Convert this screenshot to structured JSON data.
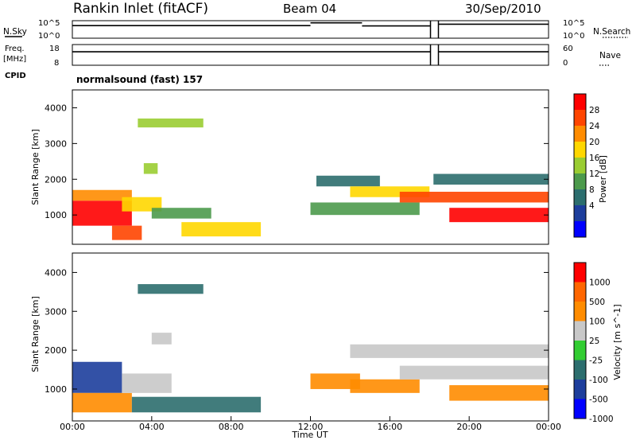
{
  "header": {
    "station": "Rankin Inlet (fitACF)",
    "beam": "Beam 04",
    "date": "30/Sep/2010"
  },
  "side_labels": {
    "nsky": "N.Sky",
    "freq_line1": "Freq.",
    "freq_line2": "[MHz]",
    "cpid": "CPID",
    "nsearch": "N.Search",
    "nave": "Nave"
  },
  "cpid_text": "normalsound (fast) 157",
  "time_axis": {
    "title": "Time UT",
    "ticks": [
      "00:00",
      "04:00",
      "08:00",
      "12:00",
      "16:00",
      "20:00",
      "00:00"
    ]
  },
  "chart_data": [
    {
      "type": "line",
      "id": "nsky-nsearch",
      "left_ticks": [
        "10^5",
        "10^0"
      ],
      "right_ticks": [
        "10^5",
        "10^0"
      ],
      "description_hours": [
        0,
        0.05,
        12,
        12.02,
        14.5,
        18.05,
        18.1,
        18.45,
        18.5,
        24
      ],
      "segments": [
        {
          "from_h": 0,
          "to_h": 12,
          "level": 0.28
        },
        {
          "from_h": 12,
          "to_h": 14.6,
          "level": 0.12
        },
        {
          "from_h": 14.6,
          "to_h": 18.05,
          "level": 0.3
        },
        {
          "from_h": 18.45,
          "to_h": 24,
          "level": 0.2
        }
      ]
    },
    {
      "type": "line",
      "id": "freq-nave",
      "left_ticks": [
        "18",
        "8"
      ],
      "right_ticks": [
        "60",
        "0"
      ],
      "segments": [
        {
          "from_h": 0,
          "to_h": 18.05,
          "level": 0.35
        },
        {
          "from_h": 18.45,
          "to_h": 24,
          "level": 0.35
        }
      ]
    },
    {
      "type": "heatmap",
      "id": "power",
      "ylabel": "Slant Range [km]",
      "yticks": [
        "4000",
        "3000",
        "2000",
        "1000"
      ],
      "ylim": [
        180,
        4500
      ],
      "xlim_hours": [
        0,
        24
      ],
      "colorbar_label": "Power [dB]",
      "colorbar_ticks": [
        "28",
        "24",
        "20",
        "16",
        "12",
        "8",
        "4"
      ],
      "colors": [
        "#0000ff",
        "#1d3e9c",
        "#2c6e6e",
        "#4c9a4c",
        "#9acd32",
        "#ffd700",
        "#ff8c00",
        "#ff4500",
        "#ff0000"
      ],
      "bands": [
        {
          "h0": 0,
          "h1": 3.0,
          "r0": 700,
          "r1": 1400,
          "c": 8
        },
        {
          "h0": 0,
          "h1": 3.0,
          "r0": 1400,
          "r1": 1700,
          "c": 6
        },
        {
          "h0": 2.5,
          "h1": 4.5,
          "r0": 1100,
          "r1": 1500,
          "c": 5
        },
        {
          "h0": 4.0,
          "h1": 7.0,
          "r0": 900,
          "r1": 1200,
          "c": 3
        },
        {
          "h0": 5.5,
          "h1": 9.5,
          "r0": 400,
          "r1": 800,
          "c": 5
        },
        {
          "h0": 2.0,
          "h1": 3.5,
          "r0": 300,
          "r1": 700,
          "c": 7
        },
        {
          "h0": 3.3,
          "h1": 6.6,
          "r0": 3450,
          "r1": 3700,
          "c": 4
        },
        {
          "h0": 3.6,
          "h1": 4.3,
          "r0": 2150,
          "r1": 2450,
          "c": 4
        },
        {
          "h0": 12.0,
          "h1": 17.5,
          "r0": 1000,
          "r1": 1350,
          "c": 3
        },
        {
          "h0": 12.3,
          "h1": 15.5,
          "r0": 1800,
          "r1": 2100,
          "c": 2
        },
        {
          "h0": 14.0,
          "h1": 18.0,
          "r0": 1500,
          "r1": 1800,
          "c": 5
        },
        {
          "h0": 16.5,
          "h1": 24,
          "r0": 1350,
          "r1": 1650,
          "c": 7
        },
        {
          "h0": 19.0,
          "h1": 24,
          "r0": 800,
          "r1": 1200,
          "c": 8
        },
        {
          "h0": 18.2,
          "h1": 24,
          "r0": 1850,
          "r1": 2150,
          "c": 2
        }
      ]
    },
    {
      "type": "heatmap",
      "id": "velocity",
      "ylabel": "Slant Range [km]",
      "yticks": [
        "4000",
        "3000",
        "2000",
        "1000"
      ],
      "ylim": [
        180,
        4500
      ],
      "xlim_hours": [
        0,
        24
      ],
      "colorbar_label": "Velocity [m s^-1]",
      "colorbar_ticks": [
        "1000",
        "500",
        "100",
        "25",
        "-25",
        "-100",
        "-500",
        "-1000"
      ],
      "colors": [
        "#0000ff",
        "#1d3e9c",
        "#2c6e6e",
        "#32cd32",
        "#c8c8c8",
        "#ff8c00",
        "#ff6600",
        "#ff0000"
      ],
      "bands": [
        {
          "h0": 0,
          "h1": 2.5,
          "r0": 900,
          "r1": 1700,
          "c": 1
        },
        {
          "h0": 0,
          "h1": 3.0,
          "r0": 400,
          "r1": 900,
          "c": 5
        },
        {
          "h0": 2.5,
          "h1": 5.0,
          "r0": 900,
          "r1": 1400,
          "c": 4
        },
        {
          "h0": 3.0,
          "h1": 9.5,
          "r0": 400,
          "r1": 800,
          "c": 2
        },
        {
          "h0": 3.3,
          "h1": 6.6,
          "r0": 3450,
          "r1": 3700,
          "c": 2
        },
        {
          "h0": 4.0,
          "h1": 5.0,
          "r0": 2150,
          "r1": 2450,
          "c": 4
        },
        {
          "h0": 12.0,
          "h1": 14.5,
          "r0": 1000,
          "r1": 1400,
          "c": 5
        },
        {
          "h0": 14.0,
          "h1": 17.5,
          "r0": 900,
          "r1": 1250,
          "c": 5
        },
        {
          "h0": 14.0,
          "h1": 24,
          "r0": 1800,
          "r1": 2150,
          "c": 4
        },
        {
          "h0": 16.5,
          "h1": 24,
          "r0": 1250,
          "r1": 1600,
          "c": 4
        },
        {
          "h0": 19.0,
          "h1": 24,
          "r0": 700,
          "r1": 1100,
          "c": 5
        }
      ]
    }
  ]
}
